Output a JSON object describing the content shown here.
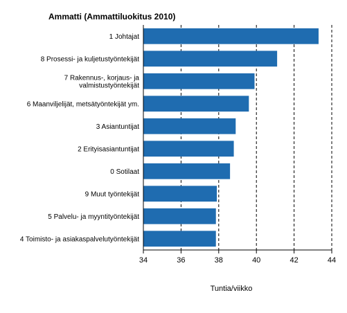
{
  "chart_data": {
    "type": "bar",
    "orientation": "horizontal",
    "title": "Ammatti (Ammattiluokitus 2010)",
    "xlabel": "Tuntia/viikko",
    "ylabel": "",
    "xlim": [
      34,
      44
    ],
    "xticks": [
      "34",
      "36",
      "38",
      "40",
      "42",
      "44"
    ],
    "grid": "dashed vertical lines at x ticks",
    "bar_color": "#1f6cb0",
    "categories": [
      [
        "1 Johtajat"
      ],
      [
        "8 Prosessi- ja kuljetustyöntekijät"
      ],
      [
        "7 Rakennus-, korjaus- ja",
        "valmistustyöntekijät"
      ],
      [
        "6 Maanviljelijät, metsätyöntekijät ym."
      ],
      [
        "3 Asiantuntijat"
      ],
      [
        "2 Erityisasiantuntijat"
      ],
      [
        "0 Sotilaat"
      ],
      [
        "9 Muut työntekijät"
      ],
      [
        "5 Palvelu- ja myyntityöntekijät"
      ],
      [
        "4 Toimisto- ja asiakaspalvelutyöntekijät"
      ]
    ],
    "values": [
      43.3,
      41.1,
      39.9,
      39.6,
      38.9,
      38.8,
      38.6,
      37.9,
      37.85,
      37.85
    ]
  }
}
